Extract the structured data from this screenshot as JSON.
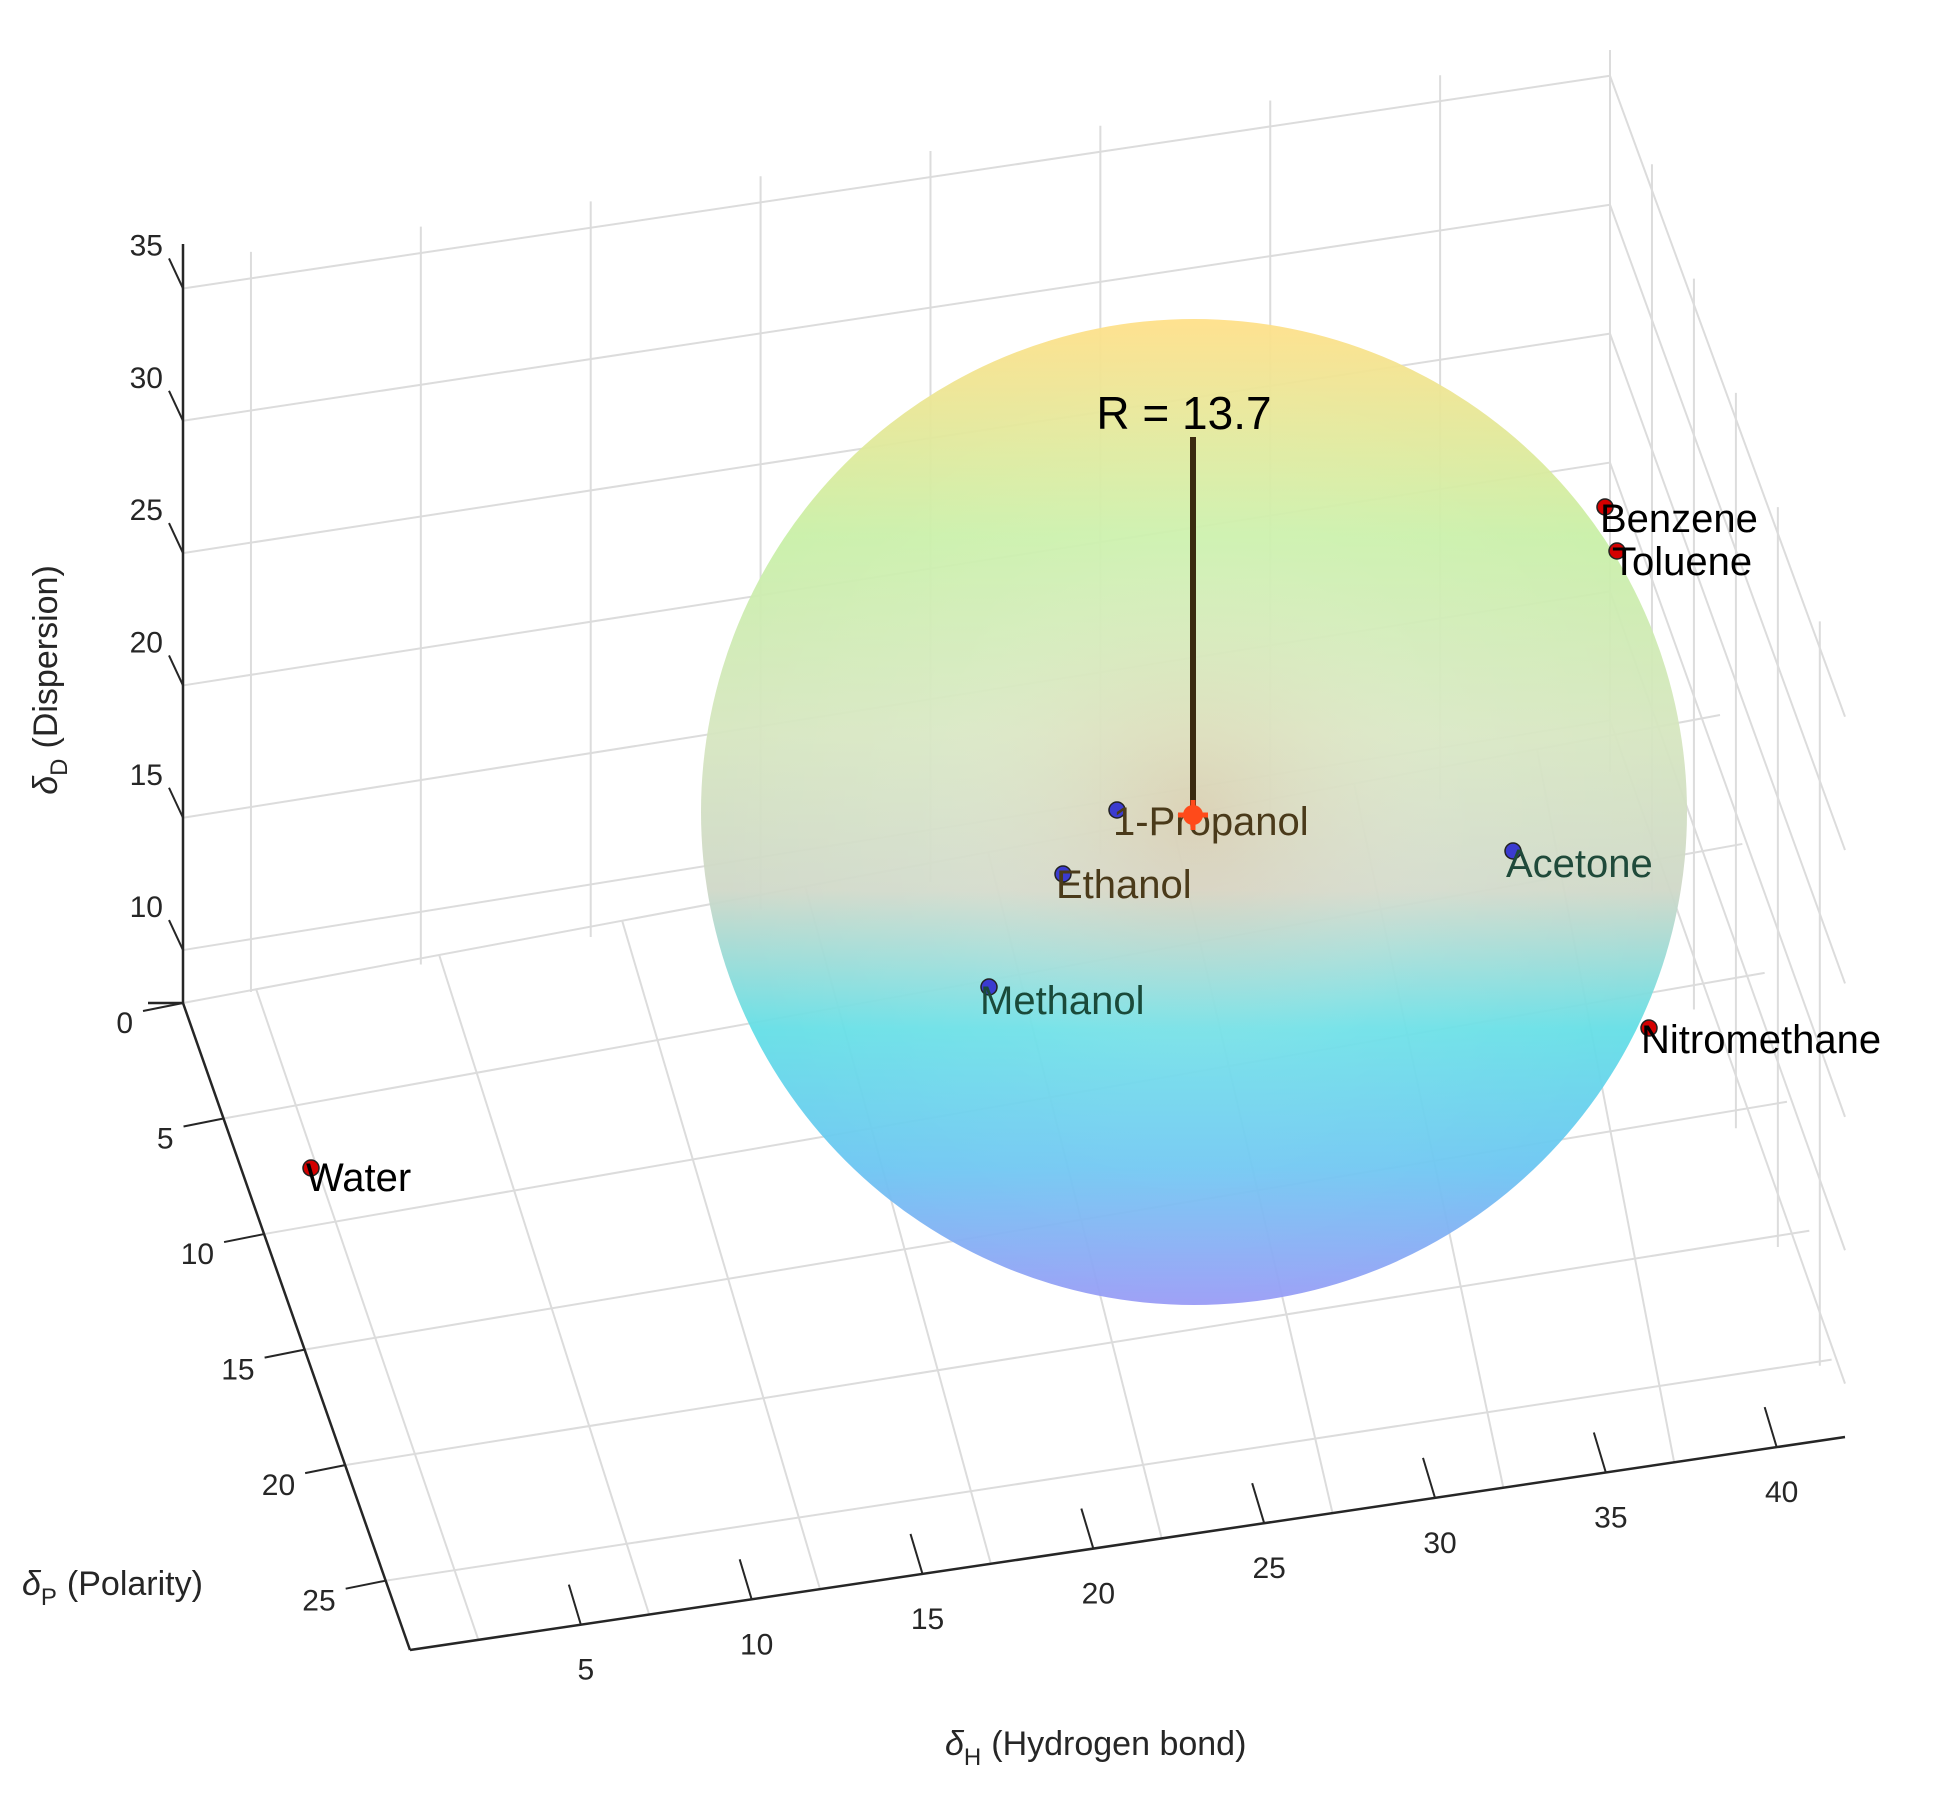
{
  "chart_data": {
    "type": "scatter3d",
    "title": "",
    "axes": {
      "x": {
        "symbol": "δ",
        "sub": "H",
        "name": "(Hydrogen bond)",
        "range": [
          0,
          42
        ],
        "ticks": [
          "5",
          "10",
          "15",
          "20",
          "25",
          "30",
          "35",
          "40"
        ],
        "tick_values": [
          5,
          10,
          15,
          20,
          25,
          30,
          35,
          40
        ]
      },
      "y": {
        "symbol": "δ",
        "sub": "P",
        "name": "(Polarity)",
        "range": [
          0,
          28
        ],
        "ticks": [
          "0",
          "5",
          "10",
          "15",
          "20",
          "25"
        ],
        "tick_values": [
          0,
          5,
          10,
          15,
          20,
          25
        ]
      },
      "z": {
        "symbol": "δ",
        "sub": "D",
        "name": "(Dispersion)",
        "range": [
          8,
          36
        ],
        "ticks": [
          "10",
          "15",
          "20",
          "25",
          "30",
          "35"
        ],
        "tick_values": [
          10,
          15,
          20,
          25,
          30,
          35
        ]
      }
    },
    "grid": true,
    "sphere": {
      "center_label": "1-Propanol",
      "radius": 13.7,
      "radius_label": "R = 13.7"
    },
    "points": [
      {
        "name": "Water",
        "color": "#d40000",
        "label_color": "#000000",
        "inside": false
      },
      {
        "name": "Benzene",
        "color": "#d40000",
        "label_color": "#000000",
        "inside": false
      },
      {
        "name": "Toluene",
        "color": "#d40000",
        "label_color": "#000000",
        "inside": false
      },
      {
        "name": "1-Propanol",
        "color": "#3b3bd0",
        "label_color": "#4a3a1a",
        "inside": true
      },
      {
        "name": "Ethanol",
        "color": "#3b3bd0",
        "label_color": "#4a3a1a",
        "inside": true
      },
      {
        "name": "Acetone",
        "color": "#3b3bd0",
        "label_color": "#1f4a3a",
        "inside": true
      },
      {
        "name": "Methanol",
        "color": "#3b3bd0",
        "label_color": "#1a4a3a",
        "inside": true
      },
      {
        "name": "Nitromethane",
        "color": "#d40000",
        "label_color": "#000000",
        "inside": false
      }
    ],
    "colors": {
      "center_marker": "#ff4a1a",
      "radius_line": "#3a2a10",
      "grid": "#dcdcdc",
      "axis": "#262626"
    }
  }
}
